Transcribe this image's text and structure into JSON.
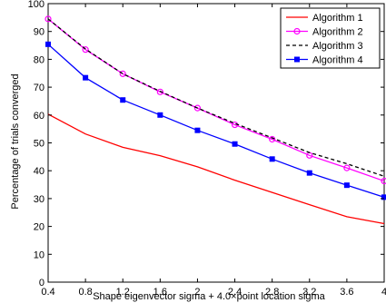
{
  "chart_data": {
    "type": "line",
    "xlabel": "Shape eigenvector sigma + 4.0×point location sigma",
    "ylabel": "Percentage of trials converged",
    "xlim": [
      0.4,
      4
    ],
    "ylim": [
      0,
      100
    ],
    "x": [
      0.4,
      0.8,
      1.2,
      1.6,
      2.0,
      2.4,
      2.8,
      3.2,
      3.6,
      4.0
    ],
    "xticks": [
      "0.4",
      "0.8",
      "1.2",
      "1.6",
      "2",
      "2.4",
      "2.8",
      "3.2",
      "3.6",
      "4"
    ],
    "yticks": [
      "0",
      "10",
      "20",
      "30",
      "40",
      "50",
      "60",
      "70",
      "80",
      "90",
      "100"
    ],
    "legend_position": "top-right",
    "grid": false,
    "series": [
      {
        "name": "Algorithm 1",
        "color": "#ff0000",
        "dash": "solid",
        "marker": "none",
        "values": [
          60.3,
          53.2,
          48.4,
          45.4,
          41.4,
          36.6,
          32.2,
          27.8,
          23.5,
          21.0
        ]
      },
      {
        "name": "Algorithm 2",
        "color": "#ff00ff",
        "dash": "solid",
        "marker": "circle",
        "values": [
          94.5,
          83.5,
          74.8,
          68.3,
          62.5,
          56.5,
          51.3,
          45.5,
          41.0,
          36.3
        ]
      },
      {
        "name": "Algorithm 3",
        "color": "#000000",
        "dash": "dashed",
        "marker": "none",
        "values": [
          94.5,
          83.7,
          74.8,
          68.5,
          62.5,
          57.0,
          51.8,
          46.5,
          42.5,
          38.0
        ]
      },
      {
        "name": "Algorithm 4",
        "color": "#0000ff",
        "dash": "solid",
        "marker": "square",
        "values": [
          85.4,
          73.4,
          65.4,
          60.0,
          54.5,
          49.6,
          44.2,
          39.2,
          34.8,
          30.5
        ]
      }
    ]
  }
}
